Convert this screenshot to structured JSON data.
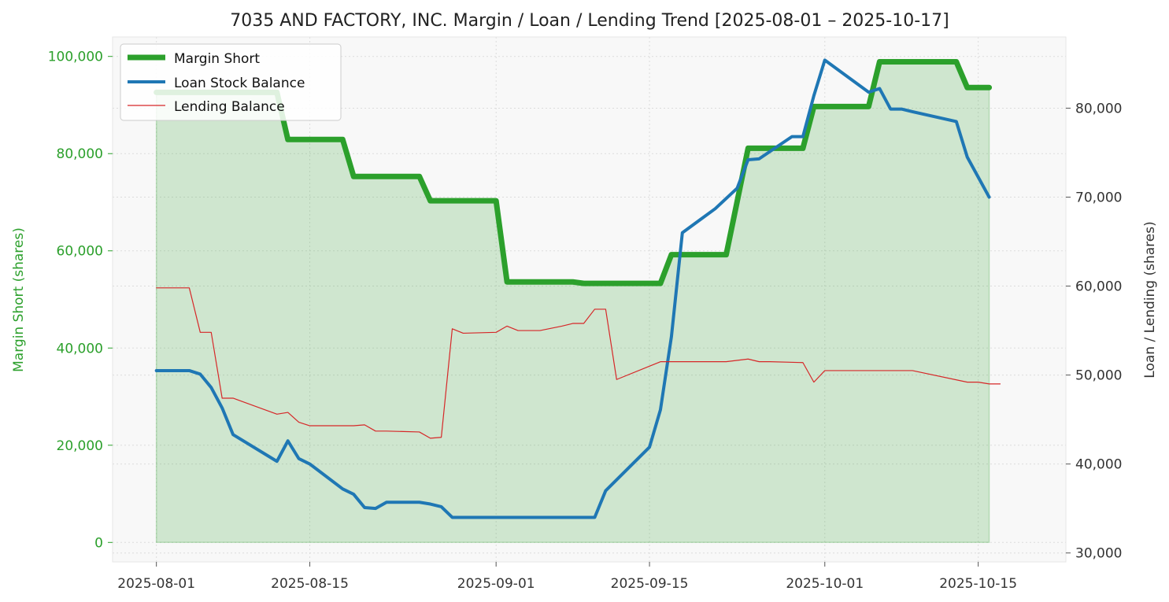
{
  "chart_data": {
    "type": "line",
    "title": "7035 AND FACTORY, INC. Margin / Loan / Lending Trend [2025-08-01 – 2025-10-17]",
    "ylabel_left": "Margin Short (shares)",
    "ylabel_right": "Loan / Lending (shares)",
    "xlim": [
      "2025-07-28",
      "2025-10-23"
    ],
    "ylim_left": [
      -4000,
      104000
    ],
    "ylim_right": [
      29000,
      88000
    ],
    "x_ticks": [
      "2025-08-01",
      "2025-08-15",
      "2025-09-01",
      "2025-09-15",
      "2025-10-01",
      "2025-10-15"
    ],
    "y_ticks_left": [
      "0",
      "20,000",
      "40,000",
      "60,000",
      "80,000",
      "100,000"
    ],
    "y_ticks_right": [
      "30,000",
      "40,000",
      "50,000",
      "60,000",
      "70,000",
      "80,000"
    ],
    "grid": true,
    "legend_position": "top-left",
    "series": [
      {
        "name": "Margin Short",
        "axis": "left",
        "color": "#2ca02c",
        "fill": true,
        "points": [
          [
            "2025-08-01",
            92600
          ],
          [
            "2025-08-12",
            92600
          ],
          [
            "2025-08-13",
            82900
          ],
          [
            "2025-08-18",
            82900
          ],
          [
            "2025-08-19",
            75300
          ],
          [
            "2025-08-25",
            75300
          ],
          [
            "2025-08-26",
            70300
          ],
          [
            "2025-09-01",
            70300
          ],
          [
            "2025-09-02",
            53600
          ],
          [
            "2025-09-08",
            53600
          ],
          [
            "2025-09-09",
            53300
          ],
          [
            "2025-09-16",
            53300
          ],
          [
            "2025-09-17",
            59200
          ],
          [
            "2025-09-22",
            59200
          ],
          [
            "2025-09-24",
            81100
          ],
          [
            "2025-09-29",
            81100
          ],
          [
            "2025-09-30",
            89700
          ],
          [
            "2025-10-05",
            89700
          ],
          [
            "2025-10-06",
            98900
          ],
          [
            "2025-10-13",
            98900
          ],
          [
            "2025-10-14",
            93600
          ],
          [
            "2025-10-16",
            93600
          ]
        ]
      },
      {
        "name": "Loan Stock Balance",
        "axis": "right",
        "color": "#1f77b4",
        "points": [
          [
            "2025-08-01",
            50500
          ],
          [
            "2025-08-04",
            50500
          ],
          [
            "2025-08-05",
            50100
          ],
          [
            "2025-08-06",
            48600
          ],
          [
            "2025-08-07",
            46300
          ],
          [
            "2025-08-08",
            43300
          ],
          [
            "2025-08-12",
            40300
          ],
          [
            "2025-08-13",
            42600
          ],
          [
            "2025-08-14",
            40600
          ],
          [
            "2025-08-15",
            40000
          ],
          [
            "2025-08-18",
            37200
          ],
          [
            "2025-08-19",
            36600
          ],
          [
            "2025-08-20",
            35100
          ],
          [
            "2025-08-21",
            35000
          ],
          [
            "2025-08-22",
            35700
          ],
          [
            "2025-08-25",
            35700
          ],
          [
            "2025-08-26",
            35500
          ],
          [
            "2025-08-27",
            35200
          ],
          [
            "2025-08-28",
            34000
          ],
          [
            "2025-09-10",
            34000
          ],
          [
            "2025-09-11",
            37000
          ],
          [
            "2025-09-15",
            41900
          ],
          [
            "2025-09-16",
            46100
          ],
          [
            "2025-09-17",
            54300
          ],
          [
            "2025-09-18",
            66000
          ],
          [
            "2025-09-21",
            68700
          ],
          [
            "2025-09-23",
            71000
          ],
          [
            "2025-09-24",
            74200
          ],
          [
            "2025-09-25",
            74300
          ],
          [
            "2025-09-28",
            76800
          ],
          [
            "2025-09-29",
            76800
          ],
          [
            "2025-09-30",
            81400
          ],
          [
            "2025-10-01",
            85400
          ],
          [
            "2025-10-05",
            81800
          ],
          [
            "2025-10-06",
            82200
          ],
          [
            "2025-10-07",
            79900
          ],
          [
            "2025-10-08",
            79900
          ],
          [
            "2025-10-09",
            79600
          ],
          [
            "2025-10-13",
            78500
          ],
          [
            "2025-10-14",
            74500
          ],
          [
            "2025-10-16",
            70000
          ]
        ]
      },
      {
        "name": "Lending Balance",
        "axis": "right",
        "color": "#d62728",
        "points": [
          [
            "2025-08-01",
            59800
          ],
          [
            "2025-08-04",
            59800
          ],
          [
            "2025-08-05",
            54800
          ],
          [
            "2025-08-06",
            54800
          ],
          [
            "2025-08-07",
            47400
          ],
          [
            "2025-08-08",
            47400
          ],
          [
            "2025-08-12",
            45600
          ],
          [
            "2025-08-13",
            45800
          ],
          [
            "2025-08-14",
            44700
          ],
          [
            "2025-08-15",
            44300
          ],
          [
            "2025-08-19",
            44300
          ],
          [
            "2025-08-20",
            44400
          ],
          [
            "2025-08-21",
            43700
          ],
          [
            "2025-08-22",
            43700
          ],
          [
            "2025-08-25",
            43600
          ],
          [
            "2025-08-26",
            42900
          ],
          [
            "2025-08-27",
            43000
          ],
          [
            "2025-08-28",
            55200
          ],
          [
            "2025-08-29",
            54700
          ],
          [
            "2025-09-01",
            54800
          ],
          [
            "2025-09-02",
            55500
          ],
          [
            "2025-09-03",
            55000
          ],
          [
            "2025-09-05",
            55000
          ],
          [
            "2025-09-07",
            55500
          ],
          [
            "2025-09-08",
            55800
          ],
          [
            "2025-09-09",
            55800
          ],
          [
            "2025-09-10",
            57400
          ],
          [
            "2025-09-11",
            57400
          ],
          [
            "2025-09-12",
            49500
          ],
          [
            "2025-09-15",
            51000
          ],
          [
            "2025-09-16",
            51500
          ],
          [
            "2025-09-22",
            51500
          ],
          [
            "2025-09-24",
            51800
          ],
          [
            "2025-09-25",
            51500
          ],
          [
            "2025-09-26",
            51500
          ],
          [
            "2025-09-29",
            51400
          ],
          [
            "2025-09-30",
            49200
          ],
          [
            "2025-10-01",
            50500
          ],
          [
            "2025-10-09",
            50500
          ],
          [
            "2025-10-14",
            49200
          ],
          [
            "2025-10-15",
            49200
          ],
          [
            "2025-10-16",
            49000
          ],
          [
            "2025-10-17",
            49000
          ]
        ]
      }
    ]
  }
}
